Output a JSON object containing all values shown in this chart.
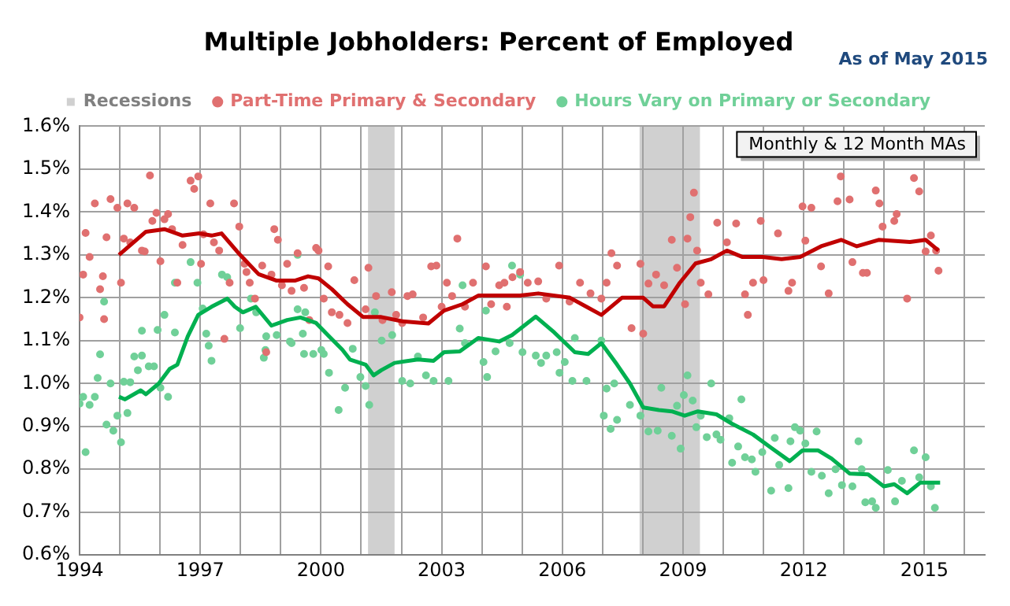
{
  "chart_data": {
    "type": "scatter",
    "title": "Multiple Jobholders: Percent of Employed",
    "annotations": [
      "Monthly & 12 Month MAs",
      "As of May 2015"
    ],
    "xlim": [
      1994,
      2016.5
    ],
    "xticks": [
      1994,
      {
        "value": 1995,
        "label": null
      },
      {
        "value": 1996,
        "label": null
      },
      1997,
      {
        "value": 1998,
        "label": null
      },
      {
        "value": 1999,
        "label": null
      },
      2000,
      {
        "value": 2001,
        "label": null
      },
      {
        "value": 2002,
        "label": null
      },
      2003,
      {
        "value": 2004,
        "label": null
      },
      {
        "value": 2005,
        "label": null
      },
      2006,
      {
        "value": 2007,
        "label": null
      },
      {
        "value": 2008,
        "label": null
      },
      2009,
      {
        "value": 2010,
        "label": null
      },
      {
        "value": 2011,
        "label": null
      },
      2012,
      {
        "value": 2013,
        "label": null
      },
      {
        "value": 2014,
        "label": null
      },
      2015,
      {
        "value": 2016,
        "label": null
      }
    ],
    "ylim": [
      0.6,
      1.6
    ],
    "yticks": [
      {
        "value": 0.6,
        "label": "0.6%"
      },
      {
        "value": 0.7,
        "label": "0.7%"
      },
      {
        "value": 0.8,
        "label": "0.8%"
      },
      {
        "value": 0.9,
        "label": "0.9%"
      },
      {
        "value": 1.0,
        "label": "1.0%"
      },
      {
        "value": 1.1,
        "label": "1.1%"
      },
      {
        "value": 1.2,
        "label": "1.2%"
      },
      {
        "value": 1.3,
        "label": "1.3%"
      },
      {
        "value": 1.4,
        "label": "1.4%"
      },
      {
        "value": 1.5,
        "label": "1.5%"
      },
      {
        "value": 1.6,
        "label": "1.6%"
      }
    ],
    "grid": true,
    "legend": "top",
    "bands": [
      {
        "axis": "x",
        "from": 2001.17,
        "to": 2001.83,
        "label": "Recessions",
        "color": "#d0d0d0"
      },
      {
        "axis": "x",
        "from": 2007.92,
        "to": 2009.42,
        "color": "#d0d0d0"
      }
    ],
    "series": [
      {
        "name": "Part-Time Primary & Secondary",
        "type": "scatter",
        "marker": "circle",
        "color": "#e07070",
        "x": [
          1994.0,
          1994.09,
          1994.15,
          1994.25,
          1994.38,
          1994.51,
          1994.58,
          1994.61,
          1994.67,
          1994.77,
          1994.94,
          1995.03,
          1995.1,
          1995.19,
          1995.26,
          1995.36,
          1995.55,
          1995.62,
          1995.75,
          1995.81,
          1995.91,
          1996.01,
          1996.11,
          1996.2,
          1996.3,
          1996.43,
          1996.56,
          1996.76,
          1996.85,
          1996.95,
          1997.02,
          1997.08,
          1997.25,
          1997.34,
          1997.47,
          1997.6,
          1997.73,
          1997.84,
          1997.97,
          1998.1,
          1998.15,
          1998.23,
          1998.36,
          1998.54,
          1998.64,
          1998.77,
          1998.84,
          1998.93,
          1999.03,
          1999.16,
          1999.27,
          1999.42,
          1999.58,
          1999.71,
          1999.88,
          1999.94,
          2000.07,
          2000.18,
          2000.27,
          2000.46,
          2000.66,
          2000.83,
          2001.11,
          2001.18,
          2001.37,
          2001.53,
          2001.76,
          2001.87,
          2002.02,
          2002.15,
          2002.28,
          2002.54,
          2002.74,
          2002.87,
          2003.0,
          2003.13,
          2003.26,
          2003.39,
          2003.58,
          2003.78,
          2004.1,
          2004.23,
          2004.43,
          2004.56,
          2004.62,
          2004.76,
          2004.95,
          2005.14,
          2005.4,
          2005.6,
          2005.92,
          2006.18,
          2006.44,
          2006.7,
          2006.97,
          2007.1,
          2007.22,
          2007.36,
          2007.72,
          2007.94,
          2008.01,
          2008.14,
          2008.33,
          2008.53,
          2008.72,
          2008.85,
          2009.05,
          2009.11,
          2009.18,
          2009.27,
          2009.35,
          2009.44,
          2009.63,
          2009.85,
          2010.09,
          2010.32,
          2010.54,
          2010.61,
          2010.74,
          2010.93,
          2011.0,
          2011.36,
          2011.62,
          2011.71,
          2011.97,
          2012.04,
          2012.19,
          2012.43,
          2012.62,
          2012.84,
          2012.92,
          2013.14,
          2013.21,
          2013.47,
          2013.57,
          2013.79,
          2013.88,
          2013.96,
          2014.25,
          2014.31,
          2014.57,
          2014.74,
          2014.87,
          2015.03,
          2015.16,
          2015.29,
          2015.35
        ],
        "values": [
          1.154,
          1.254,
          1.351,
          1.295,
          1.42,
          1.22,
          1.25,
          1.15,
          1.341,
          1.43,
          1.41,
          1.235,
          1.338,
          1.42,
          1.329,
          1.41,
          1.31,
          1.308,
          1.485,
          1.379,
          1.398,
          1.285,
          1.383,
          1.395,
          1.36,
          1.235,
          1.323,
          1.473,
          1.454,
          1.483,
          1.279,
          1.348,
          1.42,
          1.329,
          1.31,
          1.104,
          1.235,
          1.42,
          1.366,
          1.279,
          1.26,
          1.235,
          1.198,
          1.275,
          1.073,
          1.254,
          1.36,
          1.335,
          1.229,
          1.279,
          1.216,
          1.304,
          1.223,
          1.148,
          1.316,
          1.31,
          1.198,
          1.273,
          1.166,
          1.16,
          1.141,
          1.241,
          1.173,
          1.27,
          1.204,
          1.148,
          1.213,
          1.16,
          1.141,
          1.204,
          1.208,
          1.154,
          1.273,
          1.275,
          1.179,
          1.235,
          1.204,
          1.338,
          1.179,
          1.235,
          1.273,
          1.185,
          1.229,
          1.235,
          1.179,
          1.248,
          1.26,
          1.235,
          1.238,
          1.198,
          1.275,
          1.191,
          1.235,
          1.21,
          1.198,
          1.235,
          1.304,
          1.275,
          1.129,
          1.279,
          1.116,
          1.233,
          1.254,
          1.229,
          1.335,
          1.27,
          1.185,
          1.338,
          1.388,
          1.445,
          1.31,
          1.235,
          1.208,
          1.375,
          1.329,
          1.373,
          1.208,
          1.16,
          1.235,
          1.379,
          1.241,
          1.35,
          1.216,
          1.235,
          1.413,
          1.333,
          1.41,
          1.273,
          1.21,
          1.425,
          1.483,
          1.429,
          1.283,
          1.258,
          1.258,
          1.45,
          1.42,
          1.366,
          1.379,
          1.395,
          1.198,
          1.479,
          1.448,
          1.308,
          1.345,
          1.31,
          1.263
        ]
      },
      {
        "name": "Hours Vary on Primary or Secondary",
        "type": "scatter",
        "marker": "circle",
        "color": "#70d098",
        "x": [
          1994.0,
          1994.09,
          1994.15,
          1994.25,
          1994.38,
          1994.45,
          1994.51,
          1994.61,
          1994.67,
          1994.77,
          1994.84,
          1994.94,
          1995.03,
          1995.1,
          1995.19,
          1995.26,
          1995.36,
          1995.45,
          1995.55,
          1995.55,
          1995.72,
          1995.85,
          1995.94,
          1996.01,
          1996.11,
          1996.2,
          1996.37,
          1996.37,
          1996.76,
          1996.93,
          1997.06,
          1997.15,
          1997.21,
          1997.28,
          1997.54,
          1997.67,
          1997.99,
          1998.26,
          1998.39,
          1998.58,
          1998.62,
          1998.64,
          1998.9,
          1999.23,
          1999.27,
          1999.42,
          1999.42,
          1999.55,
          1999.58,
          1999.61,
          1999.81,
          2000.01,
          2000.07,
          2000.2,
          2000.44,
          2000.6,
          2000.79,
          2000.98,
          2001.11,
          2001.2,
          2001.34,
          2001.51,
          2001.77,
          2002.02,
          2002.22,
          2002.41,
          2002.61,
          2002.8,
          2003.17,
          2003.45,
          2003.52,
          2003.58,
          2004.04,
          2004.1,
          2004.13,
          2004.34,
          2004.43,
          2004.69,
          2004.75,
          2004.95,
          2005.01,
          2005.34,
          2005.47,
          2005.6,
          2005.86,
          2005.93,
          2006.06,
          2006.25,
          2006.31,
          2006.6,
          2006.97,
          2007.03,
          2007.1,
          2007.2,
          2007.29,
          2007.36,
          2007.68,
          2007.94,
          2008.14,
          2008.37,
          2008.46,
          2008.72,
          2008.85,
          2008.94,
          2009.02,
          2009.11,
          2009.24,
          2009.33,
          2009.44,
          2009.59,
          2009.7,
          2009.83,
          2009.93,
          2010.15,
          2010.22,
          2010.37,
          2010.45,
          2010.54,
          2010.71,
          2010.8,
          2010.97,
          2011.19,
          2011.28,
          2011.39,
          2011.62,
          2011.67,
          2011.78,
          2011.91,
          2012.04,
          2012.19,
          2012.32,
          2012.45,
          2012.62,
          2012.79,
          2012.95,
          2013.21,
          2013.36,
          2013.44,
          2013.53,
          2013.7,
          2013.79,
          2014.09,
          2014.27,
          2014.44,
          2014.74,
          2014.87,
          2015.03,
          2015.16,
          2015.26
        ],
        "values": [
          0.953,
          0.969,
          0.84,
          0.95,
          0.969,
          1.013,
          1.068,
          1.191,
          0.904,
          1.0,
          0.89,
          0.925,
          0.863,
          1.004,
          0.931,
          1.003,
          1.063,
          1.031,
          1.065,
          1.123,
          1.04,
          1.04,
          1.125,
          0.99,
          1.16,
          0.969,
          1.119,
          1.235,
          1.283,
          1.235,
          1.175,
          1.116,
          1.088,
          1.053,
          1.254,
          1.248,
          1.129,
          1.198,
          1.166,
          1.06,
          1.078,
          1.11,
          1.113,
          1.098,
          1.094,
          1.173,
          1.3,
          1.116,
          1.069,
          1.166,
          1.069,
          1.078,
          1.069,
          1.025,
          0.938,
          0.99,
          1.081,
          1.015,
          0.994,
          0.95,
          1.166,
          1.1,
          1.113,
          1.006,
          1.0,
          1.063,
          1.019,
          1.006,
          1.006,
          1.128,
          1.229,
          1.094,
          1.05,
          1.17,
          1.015,
          1.075,
          null,
          1.094,
          1.275,
          1.254,
          1.073,
          1.065,
          1.048,
          1.065,
          1.073,
          1.025,
          1.05,
          1.006,
          1.106,
          1.006,
          1.1,
          0.925,
          0.988,
          0.894,
          1.0,
          0.915,
          0.95,
          0.925,
          0.888,
          0.89,
          0.99,
          0.878,
          0.948,
          0.848,
          0.973,
          1.019,
          0.96,
          0.898,
          0.925,
          0.875,
          1.0,
          0.881,
          0.869,
          0.919,
          0.815,
          0.853,
          0.963,
          0.828,
          0.823,
          0.794,
          0.84,
          0.75,
          0.873,
          0.81,
          0.756,
          0.865,
          0.898,
          0.89,
          0.86,
          0.794,
          0.888,
          0.785,
          0.744,
          0.8,
          0.763,
          0.76,
          0.865,
          0.8,
          0.723,
          0.725,
          0.71,
          0.798,
          0.725,
          0.773,
          0.844,
          0.781,
          0.828,
          0.76,
          0.71
        ]
      },
      {
        "type": "line",
        "marker": "none",
        "color": "#c00000",
        "x": [
          1994.98,
          1995.65,
          1996.11,
          1996.56,
          1996.98,
          1997.28,
          1997.53,
          1997.99,
          1998.45,
          1998.9,
          1999.35,
          1999.68,
          1999.94,
          2000.27,
          2000.66,
          2001.05,
          2001.5,
          2002.02,
          2002.67,
          2003.06,
          2003.52,
          2003.91,
          2004.62,
          2004.95,
          2005.4,
          2006.19,
          2006.58,
          2006.97,
          2007.48,
          2008.01,
          2008.25,
          2008.53,
          2008.92,
          2009.31,
          2009.7,
          2010.09,
          2010.48,
          2010.98,
          2011.45,
          2011.91,
          2012.43,
          2012.93,
          2013.32,
          2013.86,
          2014.64,
          2015.03,
          2015.35
        ],
        "values": [
          1.3,
          1.354,
          1.36,
          1.345,
          1.35,
          1.345,
          1.35,
          1.3,
          1.255,
          1.24,
          1.24,
          1.25,
          1.245,
          1.22,
          1.185,
          1.155,
          1.155,
          1.145,
          1.14,
          1.17,
          1.185,
          1.205,
          1.205,
          1.205,
          1.21,
          1.2,
          1.18,
          1.16,
          1.2,
          1.2,
          1.18,
          1.18,
          1.235,
          1.28,
          1.29,
          1.31,
          1.295,
          1.295,
          1.29,
          1.295,
          1.32,
          1.335,
          1.32,
          1.335,
          1.33,
          1.335,
          1.31
        ]
      },
      {
        "type": "line",
        "marker": "none",
        "color": "#00b050",
        "x": [
          1994.98,
          1995.13,
          1995.52,
          1995.65,
          1995.97,
          1996.24,
          1996.43,
          1996.69,
          1996.95,
          1997.28,
          1997.67,
          1997.86,
          1998.06,
          1998.38,
          1998.77,
          1999.16,
          1999.49,
          1999.88,
          2000.2,
          2000.53,
          2000.72,
          2001.11,
          2001.31,
          2001.5,
          2001.83,
          2002.41,
          2002.8,
          2003.06,
          2003.45,
          2003.91,
          2004.43,
          2004.75,
          2005.34,
          2005.8,
          2006.31,
          2006.64,
          2006.97,
          2007.36,
          2007.68,
          2008.01,
          2008.4,
          2008.72,
          2009.04,
          2009.37,
          2009.83,
          2010.22,
          2010.74,
          2011.19,
          2011.65,
          2011.97,
          2012.36,
          2012.69,
          2013.14,
          2013.6,
          2013.99,
          2014.25,
          2014.57,
          2014.9,
          2015.39
        ],
        "values": [
          0.969,
          0.963,
          0.984,
          0.975,
          1.0,
          1.034,
          1.044,
          1.11,
          1.16,
          1.179,
          1.198,
          1.179,
          1.166,
          1.179,
          1.135,
          1.148,
          1.154,
          1.141,
          1.11,
          1.079,
          1.056,
          1.044,
          1.019,
          1.031,
          1.048,
          1.056,
          1.053,
          1.073,
          1.075,
          1.106,
          1.098,
          1.113,
          1.156,
          1.119,
          1.073,
          1.069,
          1.094,
          1.044,
          1.0,
          0.944,
          0.938,
          0.935,
          0.925,
          0.935,
          0.928,
          0.906,
          0.881,
          0.85,
          0.819,
          0.844,
          0.844,
          0.825,
          0.79,
          0.788,
          0.76,
          0.765,
          0.744,
          0.769,
          0.769
        ]
      }
    ]
  }
}
